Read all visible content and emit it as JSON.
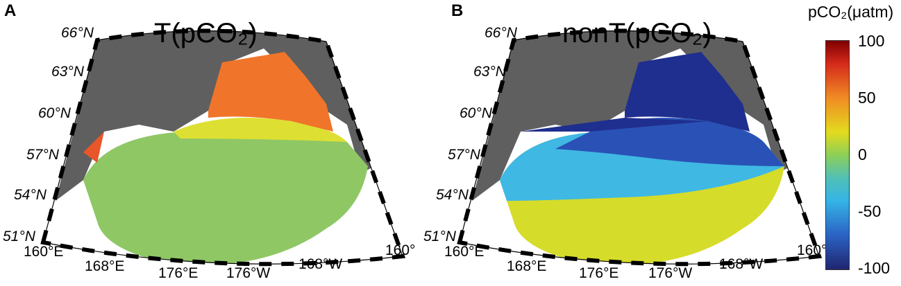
{
  "panels": [
    {
      "label": "A",
      "title": "T(pCO₂)",
      "lat_labels": [
        "66°N",
        "63°N",
        "60°N",
        "57°N",
        "54°N",
        "51°N"
      ],
      "lon_labels": [
        "160°E",
        "168°E",
        "176°E",
        "176°W",
        "168°W",
        "160°"
      ],
      "field": "temperature-driven pCO2",
      "dominant_colors": [
        "#8fc765",
        "#dde032",
        "#f0752a"
      ]
    },
    {
      "label": "B",
      "title": "nonT(pCO₂)",
      "lat_labels": [
        "66°N",
        "63°N",
        "60°N",
        "57°N",
        "54°N",
        "51°N"
      ],
      "lon_labels": [
        "160°E",
        "168°E",
        "176°E",
        "176°W",
        "168°W",
        "160°"
      ],
      "field": "non-temperature pCO2",
      "dominant_colors": [
        "#1f2f8f",
        "#3fb8e4",
        "#d6dc2a"
      ]
    }
  ],
  "colorbar": {
    "title": "pCO₂(μatm)",
    "ticks": [
      "100",
      "50",
      "0",
      "-50",
      "-100"
    ],
    "range": [
      -100,
      100
    ]
  },
  "colors": {
    "land": "#5f5f5f",
    "frame": "#000000"
  }
}
